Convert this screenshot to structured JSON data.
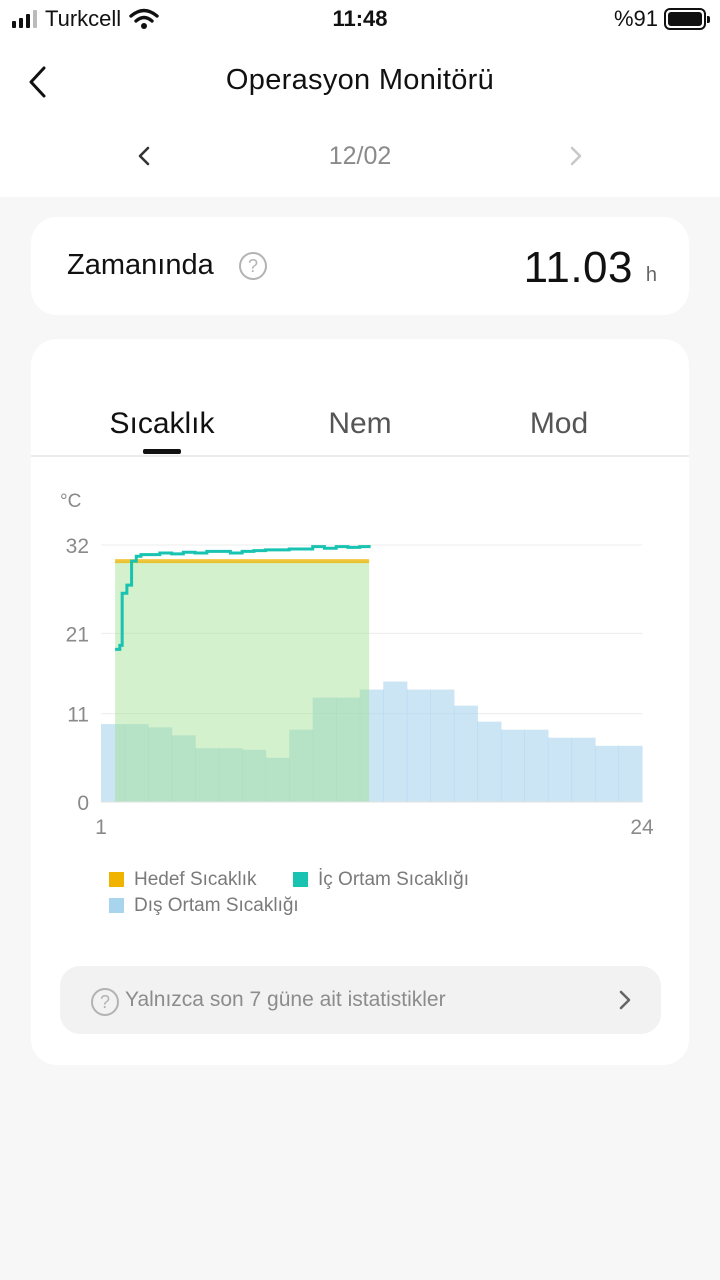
{
  "status_bar": {
    "carrier": "Turkcell",
    "time": "11:48",
    "battery": "%91",
    "icons": [
      "signal-icon",
      "wifi-icon",
      "battery-icon"
    ]
  },
  "header": {
    "title": "Operasyon Monitörü",
    "back_icon": "chevron-left-icon"
  },
  "date_nav": {
    "date": "12/02",
    "prev_icon": "chevron-left-icon",
    "next_icon": "chevron-right-icon"
  },
  "summary": {
    "label": "Zamanında",
    "value": "11.03",
    "unit": "h"
  },
  "tabs": [
    {
      "label": "Sıcaklık",
      "active": true
    },
    {
      "label": "Nem",
      "active": false
    },
    {
      "label": "Mod",
      "active": false
    }
  ],
  "chart_data": {
    "type": "area",
    "ylabel": "°C",
    "y_ticks": [
      0,
      11,
      21,
      32
    ],
    "ylim": [
      0,
      32
    ],
    "xlim": [
      1,
      24
    ],
    "x_tick_labels": [
      "1",
      "24"
    ],
    "grid": true,
    "legend_position": "bottom-left",
    "series": [
      {
        "name": "Hedef Sıcaklık",
        "color": "#f0b400",
        "x": [
          1.6,
          12.4
        ],
        "values": [
          30,
          30
        ]
      },
      {
        "name": "İç Ortam Sıcaklığı",
        "color": "#18c3b1",
        "x": [
          1.6,
          1.8,
          1.9,
          2.1,
          2.3,
          2.5,
          2.7,
          3.0,
          3.5,
          4.0,
          4.5,
          5.0,
          5.5,
          6.0,
          6.5,
          7.0,
          7.5,
          8.0,
          8.5,
          9.0,
          9.5,
          10.0,
          10.5,
          11.0,
          11.5,
          12.0,
          12.4
        ],
        "values": [
          19,
          19.5,
          26,
          27,
          30,
          30.6,
          30.8,
          30.8,
          31,
          30.9,
          31.1,
          31.0,
          31.2,
          31.2,
          31.0,
          31.2,
          31.3,
          31.4,
          31.4,
          31.5,
          31.5,
          31.8,
          31.6,
          31.8,
          31.7,
          31.8,
          32
        ]
      },
      {
        "name": "Dış Ortam Sıcaklığı",
        "color": "#a9d4ee",
        "x": [
          1,
          2,
          3,
          4,
          5,
          6,
          7,
          8,
          9,
          10,
          11,
          12,
          13,
          14,
          15,
          16,
          17,
          18,
          19,
          20,
          21,
          22,
          23,
          24
        ],
        "values": [
          9.7,
          9.7,
          9.3,
          8.3,
          6.7,
          6.7,
          6.5,
          5.5,
          9.0,
          13.0,
          13.0,
          14.0,
          15.0,
          14.0,
          14.0,
          12.0,
          10.0,
          9.0,
          9.0,
          8.0,
          8.0,
          7.0,
          7.0,
          7.0
        ]
      }
    ]
  },
  "legend": [
    {
      "label": "Hedef Sıcaklık",
      "color": "#f0b400"
    },
    {
      "label": "İç Ortam Sıcaklığı",
      "color": "#18c3b1"
    },
    {
      "label": "Dış Ortam Sıcaklığı",
      "color": "#a9d4ee"
    }
  ],
  "footer": {
    "text": "Yalnızca son 7 güne ait istatistikler",
    "arrow_icon": "chevron-right-icon",
    "help_icon": "help-circle-icon"
  }
}
